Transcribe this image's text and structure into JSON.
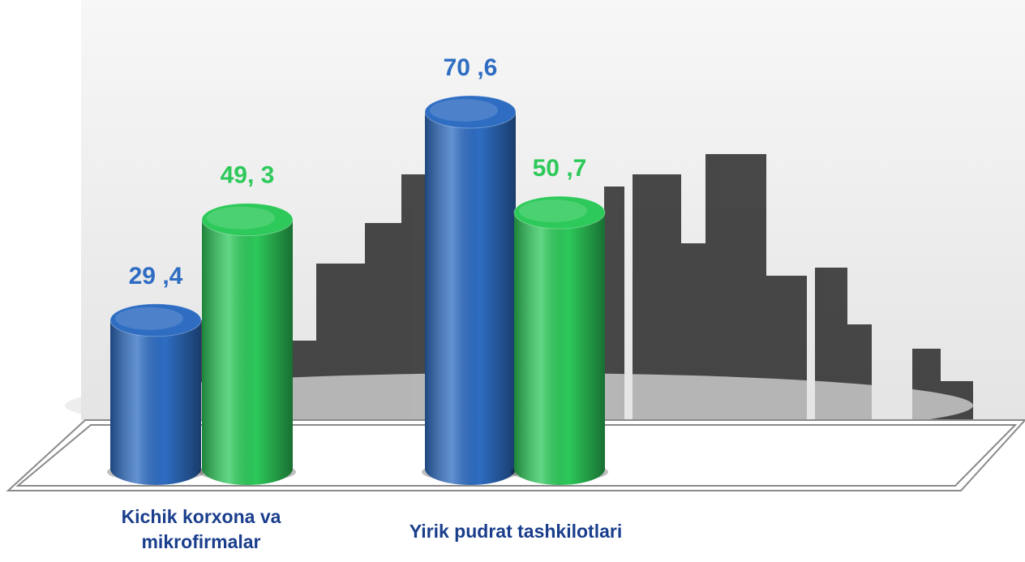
{
  "chart_data": {
    "type": "bar3d",
    "categories": [
      "Kichik korxona va mikrofirmalar",
      "Yirik pudrat tashkilotlari"
    ],
    "series": [
      {
        "color": "#2e6dc2",
        "values": [
          29.4,
          70.6
        ],
        "value_labels": [
          "29 ,4",
          "70 ,6"
        ]
      },
      {
        "color": "#2dc95a",
        "values": [
          49.3,
          50.7
        ],
        "value_labels": [
          "49, 3",
          "50 ,7"
        ]
      }
    ]
  }
}
